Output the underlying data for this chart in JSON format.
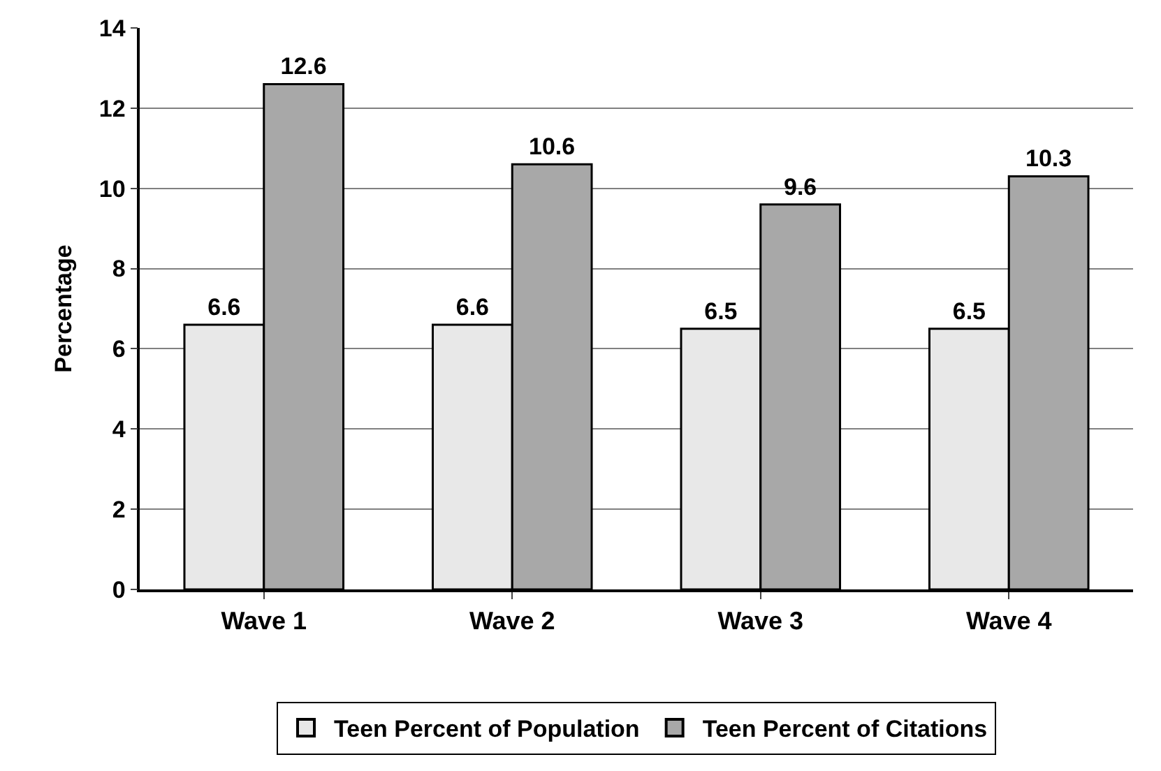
{
  "chart_data": {
    "type": "bar",
    "ylabel": "Percentage",
    "categories": [
      "Wave 1",
      "Wave 2",
      "Wave 3",
      "Wave 4"
    ],
    "series": [
      {
        "name": "Teen Percent of Population",
        "color": "#e8e8e8",
        "values": [
          6.6,
          6.6,
          6.5,
          6.5
        ]
      },
      {
        "name": "Teen Percent of Citations",
        "color": "#a8a8a8",
        "values": [
          12.6,
          10.6,
          9.6,
          10.3
        ]
      }
    ],
    "ylim": [
      0,
      14
    ],
    "yticks": [
      0,
      2,
      4,
      6,
      8,
      10,
      12,
      14
    ],
    "grid": "y",
    "legend": "bottom",
    "data_labels": true
  }
}
